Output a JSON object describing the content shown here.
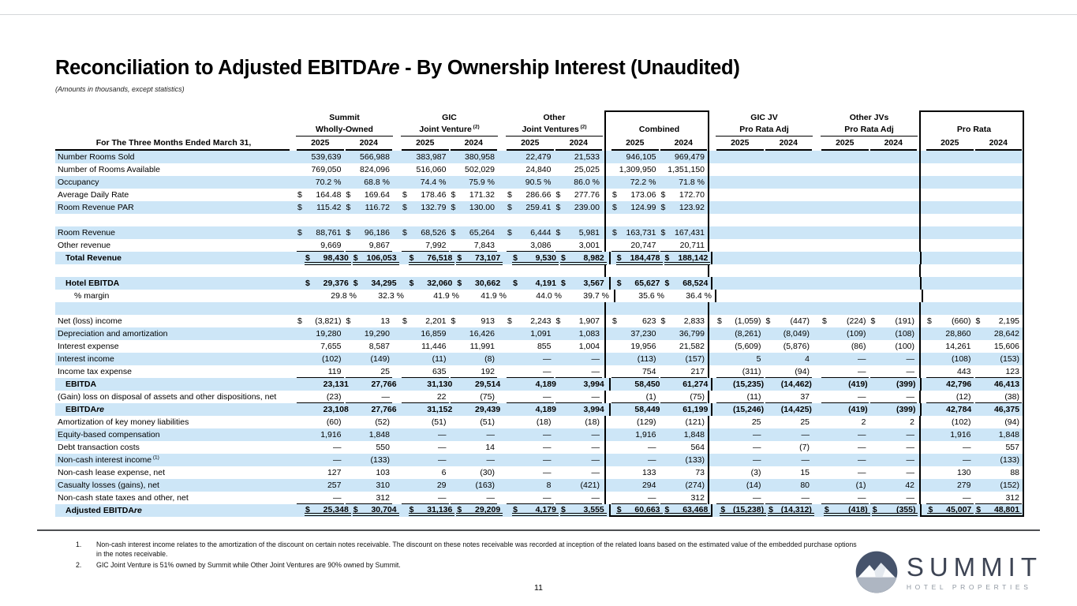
{
  "heading": {
    "pre": "Reconciliation to Adjusted EBITDA",
    "re": "re",
    "post": " - By Ownership Interest (Unaudited)"
  },
  "subtitle": "(Amounts in thousands, except statistics)",
  "colors": {
    "stripe_blue": "#cde6f7",
    "border_black": "#000000",
    "logo_navy": "#46536b",
    "logo_text_dark": "#3d4454",
    "logo_text_gray": "#9098a2"
  },
  "table": {
    "period_label": "For The Three Months Ended March 31,",
    "years": [
      "2025",
      "2024"
    ],
    "groups": [
      {
        "line1": "Summit",
        "line2": "Wholly-Owned"
      },
      {
        "line1": "GIC",
        "line2": "Joint Venture",
        "sup": "(2)"
      },
      {
        "line1": "Other",
        "line2": "Joint Ventures",
        "sup": "(2)"
      },
      {
        "line1": "",
        "line2": "Combined",
        "boxed": true
      },
      {
        "line1": "GIC JV",
        "line2": "Pro Rata Adj"
      },
      {
        "line1": "Other JVs",
        "line2": "Pro Rata Adj"
      },
      {
        "line1": "",
        "line2": "Pro Rata",
        "boxed": true
      }
    ],
    "rows": [
      {
        "label": "Number Rooms Sold",
        "cells": [
          "539,639",
          "566,988",
          "383,987",
          "380,958",
          "22,479",
          "21,533",
          "946,105",
          "969,479",
          "",
          "",
          "",
          "",
          "",
          ""
        ]
      },
      {
        "label": "Number of Rooms Available",
        "cells": [
          "769,050",
          "824,096",
          "516,060",
          "502,029",
          "24,840",
          "25,025",
          "1,309,950",
          "1,351,150",
          "",
          "",
          "",
          "",
          "",
          ""
        ]
      },
      {
        "label": "Occupancy",
        "cells": [
          "70.2 %",
          "68.8 %",
          "74.4 %",
          "75.9 %",
          "90.5 %",
          "86.0 %",
          "72.2 %",
          "71.8 %",
          "",
          "",
          "",
          "",
          "",
          ""
        ]
      },
      {
        "label": "Average Daily Rate",
        "cells": [
          "$ 164.48",
          "$ 169.64",
          "$ 178.46",
          "$ 171.32",
          "$ 286.66",
          "$ 277.76",
          "$ 173.06",
          "$ 172.70",
          "",
          "",
          "",
          "",
          "",
          ""
        ]
      },
      {
        "label": "Room Revenue PAR",
        "cells": [
          "$ 115.42",
          "$ 116.72",
          "$ 132.79",
          "$ 130.00",
          "$ 259.41",
          "$ 239.00",
          "$ 124.99",
          "$ 123.92",
          "",
          "",
          "",
          "",
          "",
          ""
        ]
      },
      {
        "label": "",
        "blank": true,
        "cells": [
          "",
          "",
          "",
          "",
          "",
          "",
          "",
          "",
          "",
          "",
          "",
          "",
          "",
          ""
        ]
      },
      {
        "label": "Room Revenue",
        "cells": [
          "$ 88,761",
          "$ 96,186",
          "$ 68,526",
          "$ 65,264",
          "$ 6,444",
          "$ 5,981",
          "$ 163,731",
          "$ 167,431",
          "",
          "",
          "",
          "",
          "",
          ""
        ]
      },
      {
        "label": "Other revenue",
        "border": "single",
        "cells": [
          "9,669",
          "9,867",
          "7,992",
          "7,843",
          "3,086",
          "3,001",
          "20,747",
          "20,711",
          "",
          "",
          "",
          "",
          "",
          ""
        ]
      },
      {
        "label": "Total Revenue",
        "bold": true,
        "indent": 1,
        "border": "double",
        "cells": [
          "$ 98,430",
          "$ 106,053",
          "$ 76,518",
          "$ 73,107",
          "$ 9,530",
          "$ 8,982",
          "$ 184,478",
          "$ 188,142",
          "",
          "",
          "",
          "",
          "",
          ""
        ]
      },
      {
        "label": "",
        "blank": true,
        "cells": [
          "",
          "",
          "",
          "",
          "",
          "",
          "",
          "",
          "",
          "",
          "",
          "",
          "",
          ""
        ]
      },
      {
        "label": "Hotel EBITDA",
        "bold": true,
        "indent": 1,
        "cells": [
          "$ 29,376",
          "$ 34,295",
          "$ 32,060",
          "$ 30,662",
          "$ 4,191",
          "$ 3,567",
          "$ 65,627",
          "$ 68,524",
          "",
          "",
          "",
          "",
          "",
          ""
        ]
      },
      {
        "label": "% margin",
        "indent": 2,
        "cells": [
          "29.8 %",
          "32.3 %",
          "41.9 %",
          "41.9 %",
          "44.0 %",
          "39.7 %",
          "35.6 %",
          "36.4 %",
          "",
          "",
          "",
          "",
          "",
          ""
        ]
      },
      {
        "label": "",
        "blank": true,
        "cells": [
          "",
          "",
          "",
          "",
          "",
          "",
          "",
          "",
          "",
          "",
          "",
          "",
          "",
          ""
        ]
      },
      {
        "label": "Net (loss) income",
        "cells": [
          "$ (3,821)",
          "$ 13",
          "$ 2,201",
          "$ 913",
          "$ 2,243",
          "$ 1,907",
          "$ 623",
          "$ 2,833",
          "$ (1,059)",
          "$ (447)",
          "$ (224)",
          "$ (191)",
          "$ (660)",
          "$ 2,195"
        ]
      },
      {
        "label": "Depreciation and amortization",
        "cells": [
          "19,280",
          "19,290",
          "16,859",
          "16,426",
          "1,091",
          "1,083",
          "37,230",
          "36,799",
          "(8,261)",
          "(8,049)",
          "(109)",
          "(108)",
          "28,860",
          "28,642"
        ]
      },
      {
        "label": "Interest expense",
        "cells": [
          "7,655",
          "8,587",
          "11,446",
          "11,991",
          "855",
          "1,004",
          "19,956",
          "21,582",
          "(5,609)",
          "(5,876)",
          "(86)",
          "(100)",
          "14,261",
          "15,606"
        ]
      },
      {
        "label": "Interest income",
        "cells": [
          "(102)",
          "(149)",
          "(11)",
          "(8)",
          "—",
          "—",
          "(113)",
          "(157)",
          "5",
          "4",
          "—",
          "—",
          "(108)",
          "(153)"
        ]
      },
      {
        "label": "Income tax expense",
        "border": "single",
        "cells": [
          "119",
          "25",
          "635",
          "192",
          "—",
          "—",
          "754",
          "217",
          "(311)",
          "(94)",
          "—",
          "—",
          "443",
          "123"
        ]
      },
      {
        "label": "EBITDA",
        "bold": true,
        "indent": 1,
        "cells": [
          "23,131",
          "27,766",
          "31,130",
          "29,514",
          "4,189",
          "3,994",
          "58,450",
          "61,274",
          "(15,235)",
          "(14,462)",
          "(419)",
          "(399)",
          "42,796",
          "46,413"
        ]
      },
      {
        "label": "(Gain) loss on disposal of assets and other dispositions, net",
        "border": "single",
        "cells": [
          "(23)",
          "—",
          "22",
          "(75)",
          "—",
          "—",
          "(1)",
          "(75)",
          "(11)",
          "37",
          "—",
          "—",
          "(12)",
          "(38)"
        ]
      },
      {
        "label": "EBITDAre",
        "re": true,
        "bold": true,
        "indent": 1,
        "cells": [
          "23,108",
          "27,766",
          "31,152",
          "29,439",
          "4,189",
          "3,994",
          "58,449",
          "61,199",
          "(15,246)",
          "(14,425)",
          "(419)",
          "(399)",
          "42,784",
          "46,375"
        ]
      },
      {
        "label": "Amortization of key money liabilities",
        "cells": [
          "(60)",
          "(52)",
          "(51)",
          "(51)",
          "(18)",
          "(18)",
          "(129)",
          "(121)",
          "25",
          "25",
          "2",
          "2",
          "(102)",
          "(94)"
        ]
      },
      {
        "label": "Equity-based compensation",
        "cells": [
          "1,916",
          "1,848",
          "—",
          "—",
          "—",
          "—",
          "1,916",
          "1,848",
          "—",
          "—",
          "—",
          "—",
          "1,916",
          "1,848"
        ]
      },
      {
        "label": "Debt transaction costs",
        "cells": [
          "—",
          "550",
          "—",
          "14",
          "—",
          "—",
          "—",
          "564",
          "—",
          "(7)",
          "—",
          "—",
          "—",
          "557"
        ]
      },
      {
        "label": "Non-cash interest income",
        "sup": "(1)",
        "cells": [
          "—",
          "(133)",
          "—",
          "—",
          "—",
          "—",
          "—",
          "(133)",
          "—",
          "—",
          "—",
          "—",
          "—",
          "(133)"
        ]
      },
      {
        "label": "Non-cash lease expense, net",
        "cells": [
          "127",
          "103",
          "6",
          "(30)",
          "—",
          "—",
          "133",
          "73",
          "(3)",
          "15",
          "—",
          "—",
          "130",
          "88"
        ]
      },
      {
        "label": "Casualty losses (gains), net",
        "cells": [
          "257",
          "310",
          "29",
          "(163)",
          "8",
          "(421)",
          "294",
          "(274)",
          "(14)",
          "80",
          "(1)",
          "42",
          "279",
          "(152)"
        ]
      },
      {
        "label": "Non-cash state taxes and other, net",
        "border": "single",
        "cells": [
          "—",
          "312",
          "—",
          "—",
          "—",
          "—",
          "—",
          "312",
          "—",
          "—",
          "—",
          "—",
          "—",
          "312"
        ]
      },
      {
        "label": "Adjusted EBITDAre",
        "re": true,
        "bold": true,
        "indent": 1,
        "border": "double",
        "cells": [
          "$ 25,348",
          "$ 30,704",
          "$ 31,136",
          "$ 29,209",
          "$ 4,179",
          "$ 3,555",
          "$ 60,663",
          "$ 63,468",
          "$ (15,238)",
          "$ (14,312)",
          "$ (418)",
          "$ (355)",
          "$ 45,007",
          "$ 48,801"
        ]
      }
    ]
  },
  "footnotes": [
    {
      "num": "1.",
      "text": "Non-cash interest income relates to the amortization of the discount on certain notes receivable. The discount on these notes receivable was recorded at inception of the related loans based on the estimated value of the embedded purchase options in the notes receivable."
    },
    {
      "num": "2.",
      "text": "GIC Joint Venture is 51% owned by Summit while Other Joint Ventures are 90% owned by Summit."
    }
  ],
  "page": {
    "number": "11"
  },
  "logo": {
    "name": "SUMMIT",
    "tagline": "HOTEL PROPERTIES"
  }
}
